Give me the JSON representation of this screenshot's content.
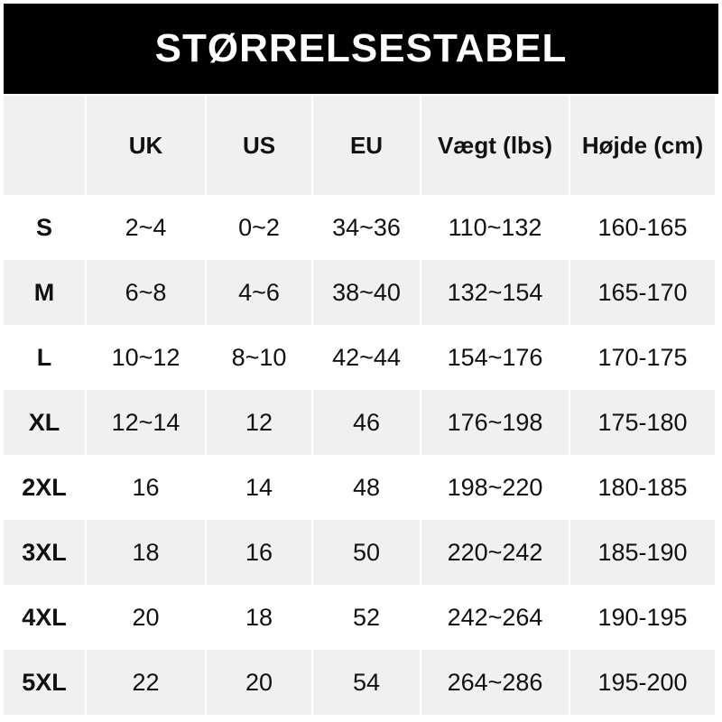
{
  "title": "STØRRELSESTABEL",
  "colors": {
    "banner_bg": "#000000",
    "banner_text": "#ffffff",
    "row_alt": "#f0f0f0"
  },
  "headers": [
    "",
    "UK",
    "US",
    "EU",
    "Vægt (lbs)",
    "Højde (cm)"
  ],
  "rows": [
    [
      "S",
      "2~4",
      "0~2",
      "34~36",
      "110~132",
      "160-165"
    ],
    [
      "M",
      "6~8",
      "4~6",
      "38~40",
      "132~154",
      "165-170"
    ],
    [
      "L",
      "10~12",
      "8~10",
      "42~44",
      "154~176",
      "170-175"
    ],
    [
      "XL",
      "12~14",
      "12",
      "46",
      "176~198",
      "175-180"
    ],
    [
      "2XL",
      "16",
      "14",
      "48",
      "198~220",
      "180-185"
    ],
    [
      "3XL",
      "18",
      "16",
      "50",
      "220~242",
      "185-190"
    ],
    [
      "4XL",
      "20",
      "18",
      "52",
      "242~264",
      "190-195"
    ],
    [
      "5XL",
      "22",
      "20",
      "54",
      "264~286",
      "195-200"
    ]
  ]
}
